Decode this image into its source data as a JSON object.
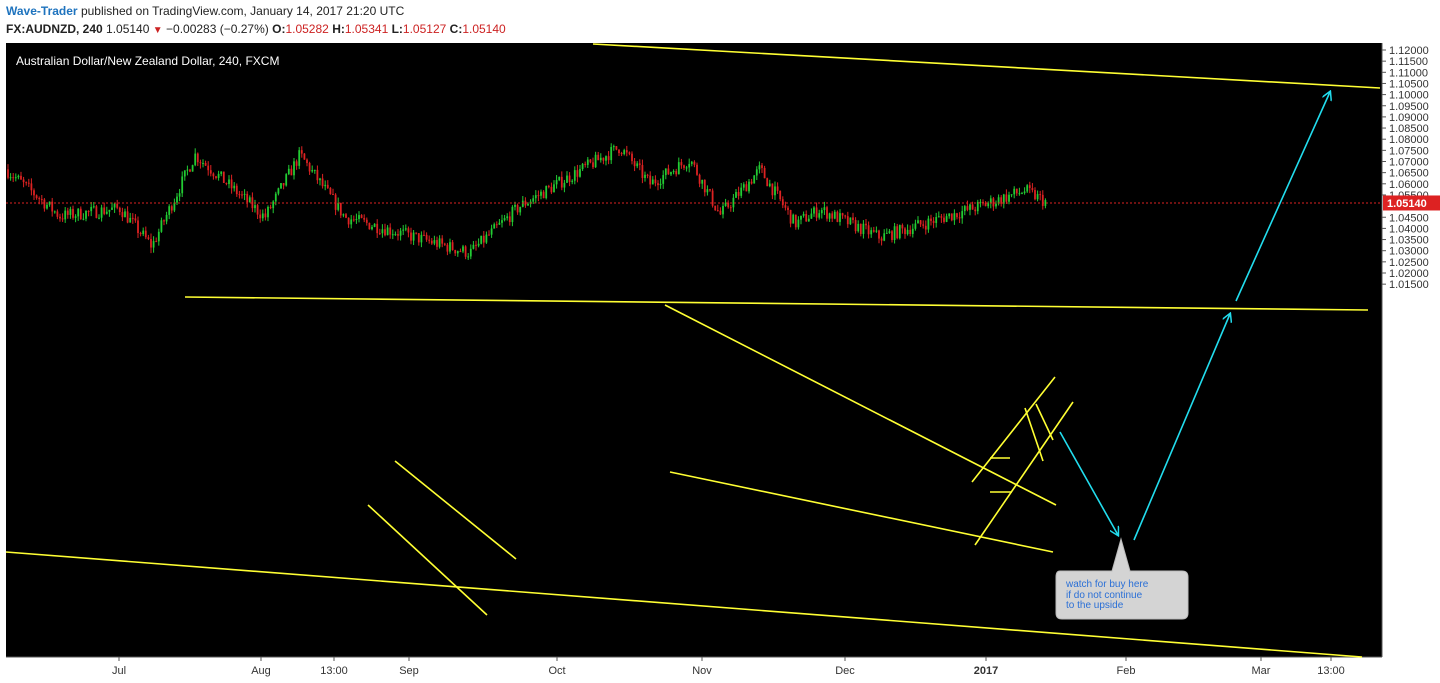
{
  "header": {
    "author": "Wave-Trader",
    "published_text": "published on TradingView.com, January 14, 2017 21:20 UTC",
    "symbol": "FX:AUDNZD, 240",
    "last": "1.05140",
    "change": "−0.00283 (−0.27%)",
    "o_label": "O:",
    "o_value": "1.05282",
    "h_label": "H:",
    "h_value": "1.05341",
    "l_label": "L:",
    "l_value": "1.05127",
    "c_label": "C:",
    "c_value": "1.05140"
  },
  "chart_data": {
    "type": "candlestick",
    "title": "Australian Dollar/New Zealand Dollar, 240, FXCM",
    "y_ticks": [
      "1.12000",
      "1.11500",
      "1.11000",
      "1.10500",
      "1.10000",
      "1.09500",
      "1.09000",
      "1.08500",
      "1.08000",
      "1.07500",
      "1.07000",
      "1.06500",
      "1.06000",
      "1.05500",
      "1.05140",
      "1.04500",
      "1.04000",
      "1.03500",
      "1.03000",
      "1.02500",
      "1.02000",
      "1.01500"
    ],
    "x_ticks": [
      "Jul",
      "Aug",
      "13:00",
      "Sep",
      "Oct",
      "Nov",
      "Dec",
      "2017",
      "Feb",
      "Mar",
      "13:00"
    ],
    "current_price": 1.0514,
    "current_price_label": "1.05140",
    "annotation": {
      "line1": "watch for buy here",
      "line2": "if do not continue",
      "line3": "to the upside"
    },
    "colors": {
      "background": "#000000",
      "up": "#22cc33",
      "down": "#dd2222",
      "trendline": "#ffff33",
      "arrow": "#22ddee",
      "price_label": "#dd2222"
    },
    "price_path_x": [
      "Jun",
      "Jul",
      "Jul",
      "Jul",
      "Aug",
      "Aug",
      "Sep",
      "Sep",
      "Sep",
      "Oct",
      "Oct",
      "Oct",
      "Nov",
      "Nov",
      "Nov",
      "Dec",
      "Dec",
      "2017",
      "2017",
      "2017",
      "2017"
    ],
    "price_path_y": [
      1.0665,
      1.0455,
      1.049,
      1.032,
      1.073,
      1.045,
      1.073,
      1.045,
      1.029,
      1.05,
      1.0765,
      1.06,
      1.071,
      1.046,
      1.0665,
      1.042,
      1.0485,
      1.036,
      1.05,
      1.057,
      1.0514
    ]
  }
}
